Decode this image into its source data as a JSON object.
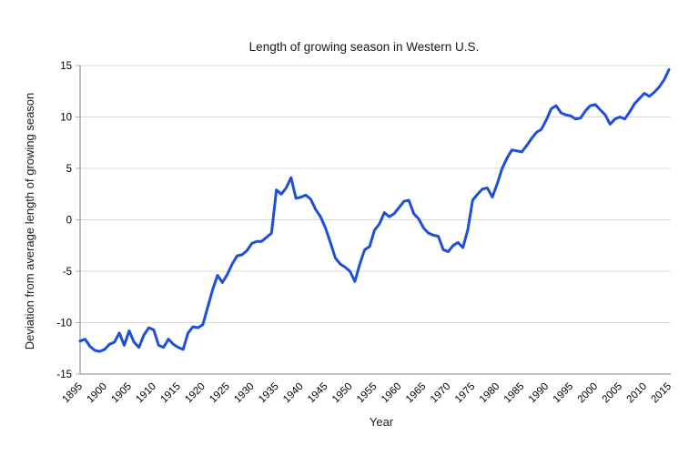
{
  "chart_data": {
    "type": "line",
    "title": "Length of growing season in Western U.S.",
    "xlabel": "Year",
    "ylabel": "Deviation from average length of growing season",
    "xlim": [
      1895,
      2015
    ],
    "ylim": [
      -15,
      15
    ],
    "grid": true,
    "legend": "none",
    "x_ticks": [
      1895,
      1900,
      1905,
      1910,
      1915,
      1920,
      1925,
      1930,
      1935,
      1940,
      1945,
      1950,
      1955,
      1960,
      1965,
      1970,
      1975,
      1980,
      1985,
      1990,
      1995,
      2000,
      2005,
      2010,
      2015
    ],
    "y_ticks": [
      15,
      10,
      5,
      0,
      -5,
      -10,
      -15
    ],
    "line_color": "#1e4fd9",
    "grid_color": "#d9d9d9",
    "axis_color": "#808080",
    "tick_color": "#b0b0b0",
    "series": [
      {
        "x": [
          1895,
          1896,
          1897,
          1898,
          1899,
          1900,
          1901,
          1902,
          1903,
          1904,
          1905,
          1906,
          1907,
          1908,
          1909,
          1910,
          1911,
          1912,
          1913,
          1914,
          1915,
          1916,
          1917,
          1918,
          1919,
          1920,
          1921,
          1922,
          1923,
          1924,
          1925,
          1926,
          1927,
          1928,
          1929,
          1930,
          1931,
          1932,
          1933,
          1934,
          1935,
          1936,
          1937,
          1938,
          1939,
          1940,
          1941,
          1942,
          1943,
          1944,
          1945,
          1946,
          1947,
          1948,
          1949,
          1950,
          1951,
          1952,
          1953,
          1954,
          1955,
          1956,
          1957,
          1958,
          1959,
          1960,
          1961,
          1962,
          1963,
          1964,
          1965,
          1966,
          1967,
          1968,
          1969,
          1970,
          1971,
          1972,
          1973,
          1974,
          1975,
          1976,
          1977,
          1978,
          1979,
          1980,
          1981,
          1982,
          1983,
          1984,
          1985,
          1986,
          1987,
          1988,
          1989,
          1990,
          1991,
          1992,
          1993,
          1994,
          1995,
          1996,
          1997,
          1998,
          1999,
          2000,
          2001,
          2002,
          2003,
          2004,
          2005,
          2006,
          2007,
          2008,
          2009,
          2010,
          2011,
          2012,
          2013,
          2014,
          2015
        ],
        "values": [
          -11.8,
          -11.6,
          -12.3,
          -12.7,
          -12.8,
          -12.6,
          -12.1,
          -11.9,
          -11.0,
          -12.2,
          -10.8,
          -11.9,
          -12.4,
          -11.2,
          -10.5,
          -10.7,
          -12.2,
          -12.4,
          -11.6,
          -12.1,
          -12.4,
          -12.6,
          -11.0,
          -10.4,
          -10.5,
          -10.2,
          -8.5,
          -6.8,
          -5.4,
          -6.1,
          -5.3,
          -4.3,
          -3.5,
          -3.4,
          -3.0,
          -2.3,
          -2.1,
          -2.1,
          -1.7,
          -1.3,
          2.9,
          2.5,
          3.1,
          4.1,
          2.1,
          2.2,
          2.4,
          2.0,
          1.0,
          0.3,
          -0.8,
          -2.2,
          -3.7,
          -4.3,
          -4.6,
          -5.0,
          -6.0,
          -4.3,
          -2.9,
          -2.6,
          -1.0,
          -0.4,
          0.7,
          0.3,
          0.6,
          1.2,
          1.8,
          1.9,
          0.6,
          0.1,
          -0.8,
          -1.3,
          -1.5,
          -1.6,
          -2.9,
          -3.1,
          -2.5,
          -2.2,
          -2.7,
          -1.0,
          1.9,
          2.5,
          3.0,
          3.1,
          2.2,
          3.5,
          5.0,
          6.0,
          6.8,
          6.7,
          6.6,
          7.2,
          7.9,
          8.5,
          8.8,
          9.7,
          10.8,
          11.1,
          10.4,
          10.2,
          10.1,
          9.8,
          9.9,
          10.6,
          11.1,
          11.2,
          10.7,
          10.2,
          9.3,
          9.8,
          10.0,
          9.8,
          10.5,
          11.3,
          11.8,
          12.3,
          12.0,
          12.4,
          12.9,
          13.6,
          14.6
        ]
      }
    ]
  }
}
